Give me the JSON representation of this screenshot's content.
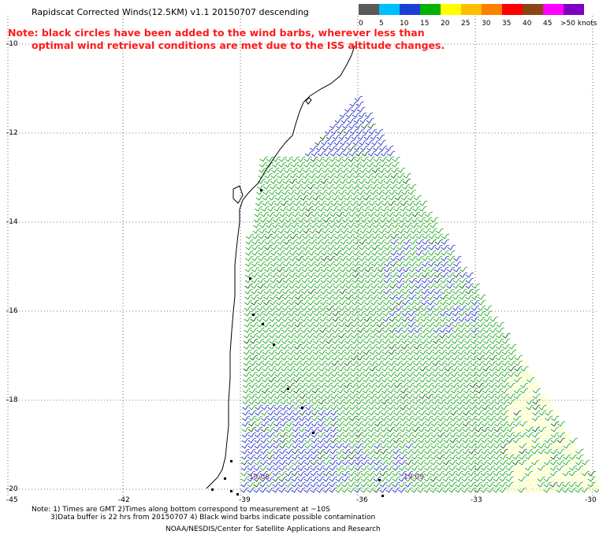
{
  "header": {
    "title": "Rapidscat Corrected Winds(12.5KM) v1.1 20150707 descending",
    "note_line1": "Note: black circles have been added to the wind barbs, wherever less than",
    "note_line2": "optimal wind retrieval conditions are met due to the ISS altitude changes."
  },
  "legend": {
    "items": [
      {
        "label": "0",
        "color": "#5a5a5a"
      },
      {
        "label": "5",
        "color": "#00bfff"
      },
      {
        "label": "10",
        "color": "#1a3fd6"
      },
      {
        "label": "15",
        "color": "#00b300"
      },
      {
        "label": "20",
        "color": "#ffff00"
      },
      {
        "label": "25",
        "color": "#ffbf00"
      },
      {
        "label": "30",
        "color": "#ff7f00"
      },
      {
        "label": "35",
        "color": "#ff0000"
      },
      {
        "label": "40",
        "color": "#8b4513"
      },
      {
        "label": "45",
        "color": "#ff00ff"
      },
      {
        "label": ">50 knots",
        "color": "#7f00bf"
      }
    ]
  },
  "axes": {
    "lat_labels": [
      "-10",
      "-12",
      "-14",
      "-16",
      "-18",
      "-20"
    ],
    "corner_label": "-45",
    "lon_labels": [
      "-42",
      "-39",
      "-36",
      "-33",
      "-30"
    ]
  },
  "pass_times": [
    "19:08",
    "19:09"
  ],
  "footer": {
    "line1": "Note: 1) Times are GMT 2)Times along bottom correspond to measurement at ~10S",
    "line2": "3)Data buffer is 22 hrs from 20150707 4) Black wind barbs indicate possible contamination",
    "line3": "NOAA/NESDIS/Center for Satellite Applications and Research"
  },
  "colors": {
    "green_barb": "#1fa81f",
    "blue_barb": "#2633c9",
    "yellow_barb": "#ffff66",
    "coast": "#000000"
  }
}
